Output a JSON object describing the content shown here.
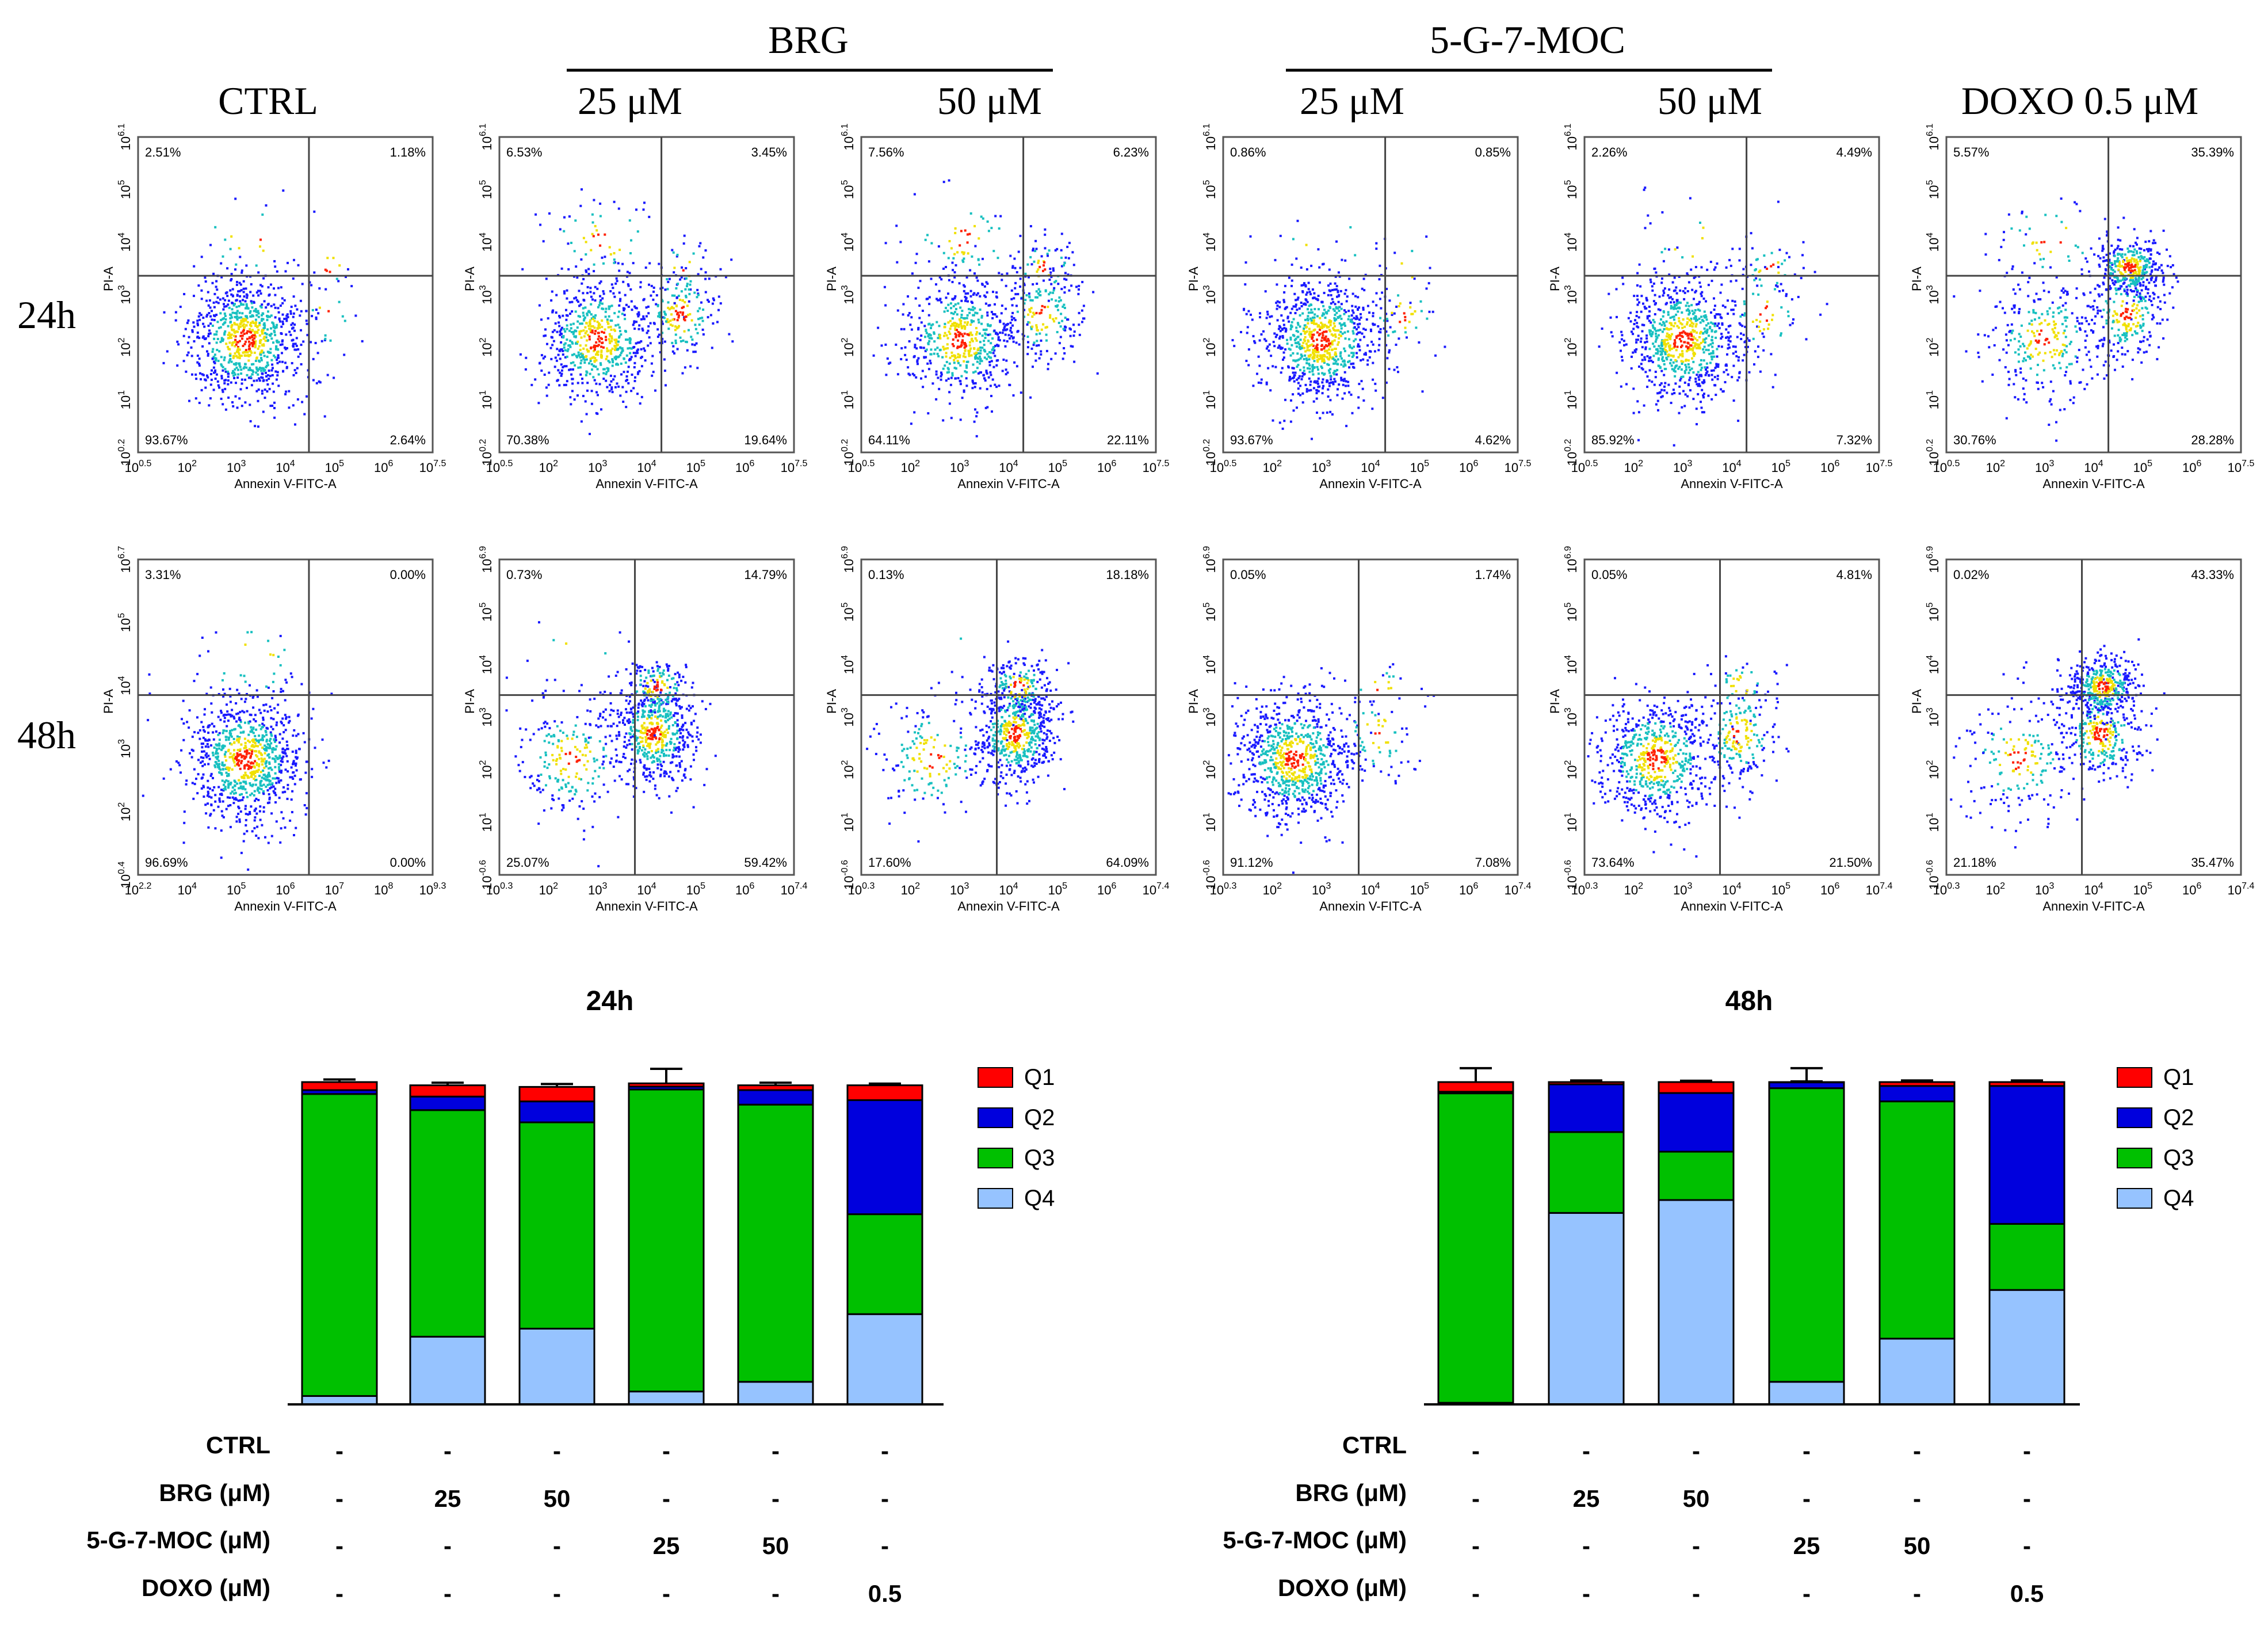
{
  "header": {
    "ctrl": "CTRL",
    "brg": "BRG",
    "moc": "5-G-7-MOC",
    "doxo": "DOXO 0.5 μM",
    "brg_conc": [
      "25 μM",
      "50 μM"
    ],
    "moc_conc": [
      "25 μM",
      "50 μM"
    ]
  },
  "rows": [
    {
      "label": "24h",
      "panels": [
        {
          "q1": "2.51%",
          "q2": "1.18%",
          "q3": "93.67%",
          "q4": "2.64%",
          "xticks": [
            "10^0.5",
            "10^2",
            "10^3",
            "10^4",
            "10^5",
            "10^6",
            "10^7.5"
          ],
          "yticks": [
            "10^6.1",
            "10^5",
            "10^4",
            "10^3",
            "10^2",
            "10^1",
            "10^0.2"
          ]
        },
        {
          "q1": "6.53%",
          "q2": "3.45%",
          "q3": "70.38%",
          "q4": "19.64%",
          "xticks": [
            "10^0.5",
            "10^2",
            "10^3",
            "10^4",
            "10^5",
            "10^6",
            "10^7.5"
          ],
          "yticks": [
            "10^6.1",
            "10^5",
            "10^4",
            "10^3",
            "10^2",
            "10^1",
            "10^0.2"
          ]
        },
        {
          "q1": "7.56%",
          "q2": "6.23%",
          "q3": "64.11%",
          "q4": "22.11%",
          "xticks": [
            "10^0.5",
            "10^2",
            "10^3",
            "10^4",
            "10^5",
            "10^6",
            "10^7.5"
          ],
          "yticks": [
            "10^6.1",
            "10^5",
            "10^4",
            "10^3",
            "10^2",
            "10^1",
            "10^0.2"
          ]
        },
        {
          "q1": "0.86%",
          "q2": "0.85%",
          "q3": "93.67%",
          "q4": "4.62%",
          "xticks": [
            "10^0.5",
            "10^2",
            "10^3",
            "10^4",
            "10^5",
            "10^6",
            "10^7.5"
          ],
          "yticks": [
            "10^6.1",
            "10^5",
            "10^4",
            "10^3",
            "10^2",
            "10^1",
            "10^0.2"
          ]
        },
        {
          "q1": "2.26%",
          "q2": "4.49%",
          "q3": "85.92%",
          "q4": "7.32%",
          "xticks": [
            "10^0.5",
            "10^2",
            "10^3",
            "10^4",
            "10^5",
            "10^6",
            "10^7.5"
          ],
          "yticks": [
            "10^6.1",
            "10^5",
            "10^4",
            "10^3",
            "10^2",
            "10^1",
            "10^0.2"
          ]
        },
        {
          "q1": "5.57%",
          "q2": "35.39%",
          "q3": "30.76%",
          "q4": "28.28%",
          "xticks": [
            "10^0.5",
            "10^2",
            "10^3",
            "10^4",
            "10^5",
            "10^6",
            "10^7.5"
          ],
          "yticks": [
            "10^6.1",
            "10^5",
            "10^4",
            "10^3",
            "10^2",
            "10^1",
            "10^0.2"
          ]
        }
      ]
    },
    {
      "label": "48h",
      "panels": [
        {
          "q1": "3.31%",
          "q2": "0.00%",
          "q3": "96.69%",
          "q4": "0.00%",
          "xticks": [
            "10^2.2",
            "10^4",
            "10^5",
            "10^6",
            "10^7",
            "10^8",
            "10^9.3"
          ],
          "yticks": [
            "10^6.7",
            "10^5",
            "10^4",
            "10^3",
            "10^2",
            "10^0.4"
          ]
        },
        {
          "q1": "0.73%",
          "q2": "14.79%",
          "q3": "25.07%",
          "q4": "59.42%",
          "xticks": [
            "10^0.3",
            "10^2",
            "10^3",
            "10^4",
            "10^5",
            "10^6",
            "10^7.4"
          ],
          "yticks": [
            "10^6.9",
            "10^5",
            "10^4",
            "10^3",
            "10^2",
            "10^1",
            "10^-0.6"
          ]
        },
        {
          "q1": "0.13%",
          "q2": "18.18%",
          "q3": "17.60%",
          "q4": "64.09%",
          "xticks": [
            "10^0.3",
            "10^2",
            "10^3",
            "10^4",
            "10^5",
            "10^6",
            "10^7.4"
          ],
          "yticks": [
            "10^6.9",
            "10^5",
            "10^4",
            "10^3",
            "10^2",
            "10^1",
            "10^-0.6"
          ]
        },
        {
          "q1": "0.05%",
          "q2": "1.74%",
          "q3": "91.12%",
          "q4": "7.08%",
          "xticks": [
            "10^0.3",
            "10^2",
            "10^3",
            "10^4",
            "10^5",
            "10^6",
            "10^7.4"
          ],
          "yticks": [
            "10^6.9",
            "10^5",
            "10^4",
            "10^3",
            "10^2",
            "10^1",
            "10^-0.6"
          ]
        },
        {
          "q1": "0.05%",
          "q2": "4.81%",
          "q3": "73.64%",
          "q4": "21.50%",
          "xticks": [
            "10^0.3",
            "10^2",
            "10^3",
            "10^4",
            "10^5",
            "10^6",
            "10^7.4"
          ],
          "yticks": [
            "10^6.9",
            "10^5",
            "10^4",
            "10^3",
            "10^2",
            "10^1",
            "10^-0.6"
          ]
        },
        {
          "q1": "0.02%",
          "q2": "43.33%",
          "q3": "21.18%",
          "q4": "35.47%",
          "xticks": [
            "10^0.3",
            "10^2",
            "10^3",
            "10^4",
            "10^5",
            "10^6",
            "10^7.4"
          ],
          "yticks": [
            "10^6.9",
            "10^5",
            "10^4",
            "10^3",
            "10^2",
            "10^1",
            "10^-0.6"
          ]
        }
      ]
    }
  ],
  "axis": {
    "xlabel": "Annexin V-FITC-A",
    "ylabel": "PI-A"
  },
  "legend": [
    "Q1",
    "Q2",
    "Q3",
    "Q4"
  ],
  "colors": {
    "Q1": "#ff0000",
    "Q2": "#0000dd",
    "Q3": "#00c000",
    "Q4": "#96c3ff",
    "cloud_low": "#1a1aff",
    "cloud_mid": "#18c0c0",
    "cloud_hi": "#f0e000",
    "cloud_peak": "#ff2000"
  },
  "conditions": {
    "rows": [
      {
        "label": "CTRL",
        "values": [
          "-",
          "-",
          "-",
          "-",
          "-",
          "-"
        ]
      },
      {
        "label": "BRG (μM)",
        "values": [
          "-",
          "25",
          "50",
          "-",
          "-",
          "-"
        ]
      },
      {
        "label": "5-G-7-MOC (μM)",
        "values": [
          "-",
          "-",
          "-",
          "25",
          "50",
          "-"
        ]
      },
      {
        "label": "DOXO (μM)",
        "values": [
          "-",
          "-",
          "-",
          "-",
          "-",
          "0.5"
        ]
      }
    ]
  },
  "chart_data": [
    {
      "type": "bar",
      "title": "24h",
      "stacked": true,
      "ylim": [
        0,
        100
      ],
      "categories": [
        "CTRL",
        "BRG 25",
        "BRG 50",
        "5-G-7-MOC 25",
        "5-G-7-MOC 50",
        "DOXO 0.5"
      ],
      "series": [
        {
          "name": "Q4",
          "values": [
            2.6,
            21.0,
            23.5,
            4.0,
            7.0,
            28.0
          ],
          "errors": [
            0.3,
            0.8,
            1.5,
            0.3,
            0.5,
            1.5
          ]
        },
        {
          "name": "Q3",
          "values": [
            93.7,
            70.3,
            64.0,
            93.7,
            86.0,
            31.0
          ],
          "errors": [
            0.5,
            0.5,
            2.5,
            0.6,
            2.5,
            1.5
          ]
        },
        {
          "name": "Q2",
          "values": [
            1.2,
            4.2,
            6.5,
            0.9,
            4.5,
            35.4
          ],
          "errors": [
            0.3,
            0.8,
            3.5,
            0.3,
            1.0,
            1.0
          ]
        },
        {
          "name": "Q1",
          "values": [
            2.5,
            3.5,
            4.5,
            1.0,
            1.5,
            4.6
          ],
          "errors": [
            0.8,
            0.8,
            0.9,
            4.5,
            0.8,
            0.5
          ]
        }
      ]
    },
    {
      "type": "bar",
      "title": "48h",
      "stacked": true,
      "ylim": [
        0,
        100
      ],
      "categories": [
        "CTRL",
        "BRG 25",
        "BRG 50",
        "5-G-7-MOC 25",
        "5-G-7-MOC 50",
        "DOXO 0.5"
      ],
      "series": [
        {
          "name": "Q4",
          "values": [
            0.5,
            59.4,
            63.4,
            7.0,
            20.4,
            35.5
          ],
          "errors": [
            0.3,
            4.0,
            6.0,
            0.3,
            0.3,
            0.4
          ]
        },
        {
          "name": "Q3",
          "values": [
            96.0,
            25.1,
            15.0,
            91.1,
            73.6,
            20.5
          ],
          "errors": [
            0.3,
            0.8,
            0.8,
            0.4,
            3.0,
            0.8
          ]
        },
        {
          "name": "Q2",
          "values": [
            0.5,
            14.8,
            18.2,
            1.8,
            4.8,
            42.8
          ],
          "errors": [
            0.2,
            0.3,
            0.6,
            0.3,
            0.3,
            0.5
          ]
        },
        {
          "name": "Q1",
          "values": [
            3.0,
            0.7,
            3.4,
            0.1,
            1.2,
            1.2
          ],
          "errors": [
            4.3,
            0.5,
            0.4,
            4.3,
            0.5,
            0.5
          ]
        }
      ]
    }
  ]
}
